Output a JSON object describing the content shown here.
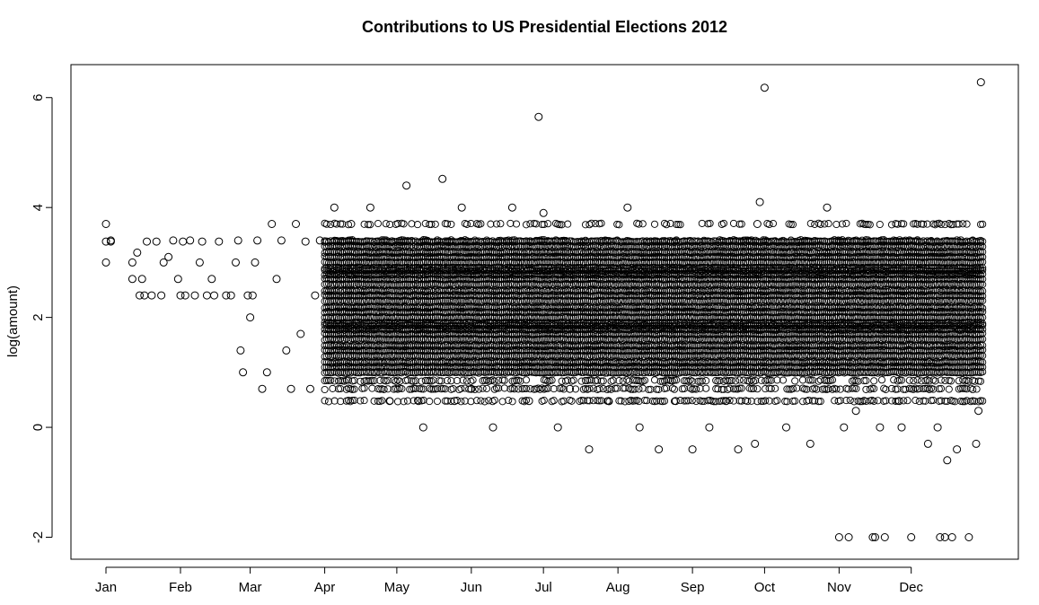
{
  "chart_data": {
    "type": "scatter",
    "title": "Contributions to US Presidential Elections 2012",
    "xlabel": "",
    "ylabel": "log(amount)",
    "xlim": [
      "2012-01-01",
      "2012-12-31"
    ],
    "ylim": [
      -2.4,
      6.6
    ],
    "x_ticks": [
      {
        "date": "2012-01-01",
        "label": "Jan"
      },
      {
        "date": "2012-02-01",
        "label": "Feb"
      },
      {
        "date": "2012-03-01",
        "label": "Mar"
      },
      {
        "date": "2012-04-01",
        "label": "Apr"
      },
      {
        "date": "2012-05-01",
        "label": "May"
      },
      {
        "date": "2012-06-01",
        "label": "Jun"
      },
      {
        "date": "2012-07-01",
        "label": "Jul"
      },
      {
        "date": "2012-08-01",
        "label": "Aug"
      },
      {
        "date": "2012-09-01",
        "label": "Sep"
      },
      {
        "date": "2012-10-01",
        "label": "Oct"
      },
      {
        "date": "2012-11-01",
        "label": "Nov"
      },
      {
        "date": "2012-12-01",
        "label": "Dec"
      }
    ],
    "y_ticks": [
      {
        "value": -2,
        "label": "-2"
      },
      {
        "value": 0,
        "label": "0"
      },
      {
        "value": 2,
        "label": "2"
      },
      {
        "value": 4,
        "label": "4"
      },
      {
        "value": 6,
        "label": "6"
      }
    ],
    "grid": false,
    "legend": "none",
    "marker": "open-circle",
    "series": [
      {
        "x": [
          "2012-01-01",
          "2012-01-01",
          "2012-01-01",
          "2012-01-03",
          "2012-01-03",
          "2012-01-12",
          "2012-01-12",
          "2012-01-14",
          "2012-01-15",
          "2012-01-16",
          "2012-01-17",
          "2012-01-18",
          "2012-01-20",
          "2012-01-22",
          "2012-01-24",
          "2012-01-25",
          "2012-01-27",
          "2012-01-29",
          "2012-01-31",
          "2012-02-01",
          "2012-02-02",
          "2012-02-03",
          "2012-02-05",
          "2012-02-07",
          "2012-02-09",
          "2012-02-10",
          "2012-02-12",
          "2012-02-14",
          "2012-02-15",
          "2012-02-17",
          "2012-02-20",
          "2012-02-22",
          "2012-02-24",
          "2012-02-25",
          "2012-02-26",
          "2012-02-27",
          "2012-02-29",
          "2012-03-01",
          "2012-03-02",
          "2012-03-03",
          "2012-03-04",
          "2012-03-06",
          "2012-03-08",
          "2012-03-10",
          "2012-03-12",
          "2012-03-14",
          "2012-03-16",
          "2012-03-18",
          "2012-03-20",
          "2012-03-22",
          "2012-03-24",
          "2012-03-26",
          "2012-03-28",
          "2012-03-30",
          "2012-04-05",
          "2012-04-12",
          "2012-04-20",
          "2012-04-28",
          "2012-05-05",
          "2012-05-10",
          "2012-05-12",
          "2012-05-20",
          "2012-05-25",
          "2012-05-28",
          "2012-06-01",
          "2012-06-10",
          "2012-06-18",
          "2012-06-25",
          "2012-06-29",
          "2012-07-01",
          "2012-07-07",
          "2012-07-12",
          "2012-07-20",
          "2012-07-28",
          "2012-08-05",
          "2012-08-10",
          "2012-08-18",
          "2012-08-25",
          "2012-09-01",
          "2012-09-08",
          "2012-09-15",
          "2012-09-20",
          "2012-09-27",
          "2012-09-28",
          "2012-09-29",
          "2012-10-01",
          "2012-10-10",
          "2012-10-20",
          "2012-10-27",
          "2012-11-01",
          "2012-11-03",
          "2012-11-05",
          "2012-11-08",
          "2012-11-15",
          "2012-11-16",
          "2012-11-18",
          "2012-11-20",
          "2012-11-26",
          "2012-11-27",
          "2012-12-01",
          "2012-12-08",
          "2012-12-12",
          "2012-12-13",
          "2012-12-15",
          "2012-12-16",
          "2012-12-18",
          "2012-12-20",
          "2012-12-25",
          "2012-12-28",
          "2012-12-29",
          "2012-12-30"
        ],
        "y": [
          3.7,
          3.0,
          3.38,
          3.38,
          3.4,
          2.7,
          3.0,
          3.18,
          2.4,
          2.7,
          2.4,
          3.38,
          2.4,
          3.38,
          2.4,
          3.0,
          3.1,
          3.4,
          2.7,
          2.4,
          3.38,
          2.4,
          3.4,
          2.4,
          3.0,
          3.38,
          2.4,
          2.7,
          2.4,
          3.38,
          2.4,
          2.4,
          3.0,
          3.4,
          1.4,
          1.0,
          2.4,
          2.0,
          2.4,
          3.0,
          3.4,
          0.7,
          1.0,
          3.7,
          2.7,
          3.4,
          1.4,
          0.7,
          3.7,
          1.7,
          3.38,
          0.7,
          2.4,
          3.4,
          4.0,
          3.7,
          4.0,
          0.48,
          4.4,
          0.48,
          0.0,
          4.52,
          0.48,
          4.0,
          0.7,
          0.0,
          4.0,
          0.48,
          5.65,
          3.9,
          0.0,
          0.7,
          -0.4,
          0.48,
          4.0,
          0.0,
          -0.4,
          0.48,
          -0.4,
          0.0,
          0.48,
          -0.4,
          -0.3,
          3.7,
          4.1,
          6.18,
          0.0,
          -0.3,
          4.0,
          -2.0,
          0.0,
          -2.0,
          0.3,
          -2.0,
          -2.0,
          0.0,
          -2.0,
          0.48,
          0.0,
          -2.0,
          -0.3,
          0.0,
          -2.0,
          -2.0,
          -0.6,
          -2.0,
          -0.4,
          -2.0,
          -0.3,
          0.3,
          6.28
        ]
      }
    ],
    "dense_band": {
      "start": "2012-04-01",
      "end": "2012-12-31",
      "levels": [
        0.48,
        0.7,
        0.85,
        1.0,
        1.1,
        1.18,
        1.3,
        1.4,
        1.48,
        1.6,
        1.7,
        1.78,
        1.85,
        1.9,
        2.0,
        2.1,
        2.18,
        2.3,
        2.4,
        2.48,
        2.6,
        2.7,
        2.78,
        2.85,
        2.9,
        3.0,
        3.1,
        3.18,
        3.3,
        3.38,
        3.4,
        3.7
      ]
    }
  }
}
